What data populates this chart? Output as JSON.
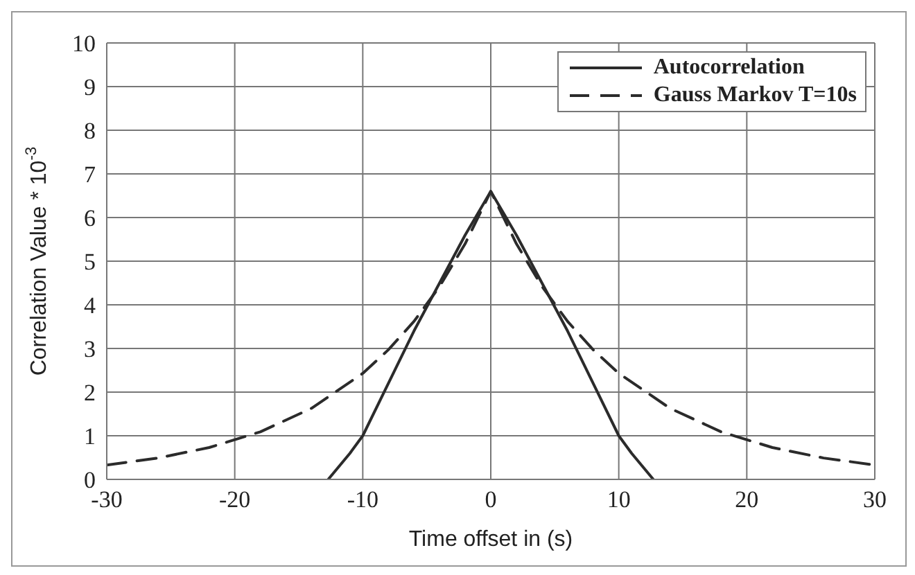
{
  "chart_data": {
    "type": "line",
    "xlabel": "Time offset in (s)",
    "ylabel": "Correlation Value * 10$^{-3}$",
    "xlim": [
      -30,
      30
    ],
    "xticks": [
      -30,
      -20,
      -10,
      0,
      10,
      20,
      30
    ],
    "ylim": [
      0,
      10
    ],
    "yticks": [
      0,
      1,
      2,
      3,
      4,
      5,
      6,
      7,
      8,
      9,
      10
    ],
    "grid": true,
    "legend": "top right",
    "marker": "none",
    "series": [
      {
        "name": "Autocorrelation",
        "color": "#2b2b2b",
        "line_style": "solid",
        "x": [
          -12.7,
          -11,
          -10,
          -8,
          -6,
          -4,
          -2,
          0,
          2,
          4,
          6,
          8,
          10,
          11,
          12.7
        ],
        "values": [
          0,
          0.6,
          1.0,
          2.2,
          3.4,
          4.5,
          5.6,
          6.6,
          5.6,
          4.5,
          3.4,
          2.2,
          1.0,
          0.6,
          0
        ]
      },
      {
        "name": "Gauss Markov T=10s",
        "color": "#2b2b2b",
        "line_style": "dashed",
        "x": [
          -30,
          -26,
          -22,
          -18,
          -14,
          -10,
          -8,
          -6,
          -4,
          -2,
          0,
          2,
          4,
          6,
          8,
          10,
          14,
          18,
          22,
          26,
          30
        ],
        "values": [
          0.33,
          0.49,
          0.73,
          1.09,
          1.63,
          2.43,
          2.97,
          3.62,
          4.42,
          5.4,
          6.6,
          5.4,
          4.42,
          3.62,
          2.97,
          2.43,
          1.63,
          1.09,
          0.73,
          0.49,
          0.33
        ]
      }
    ]
  }
}
